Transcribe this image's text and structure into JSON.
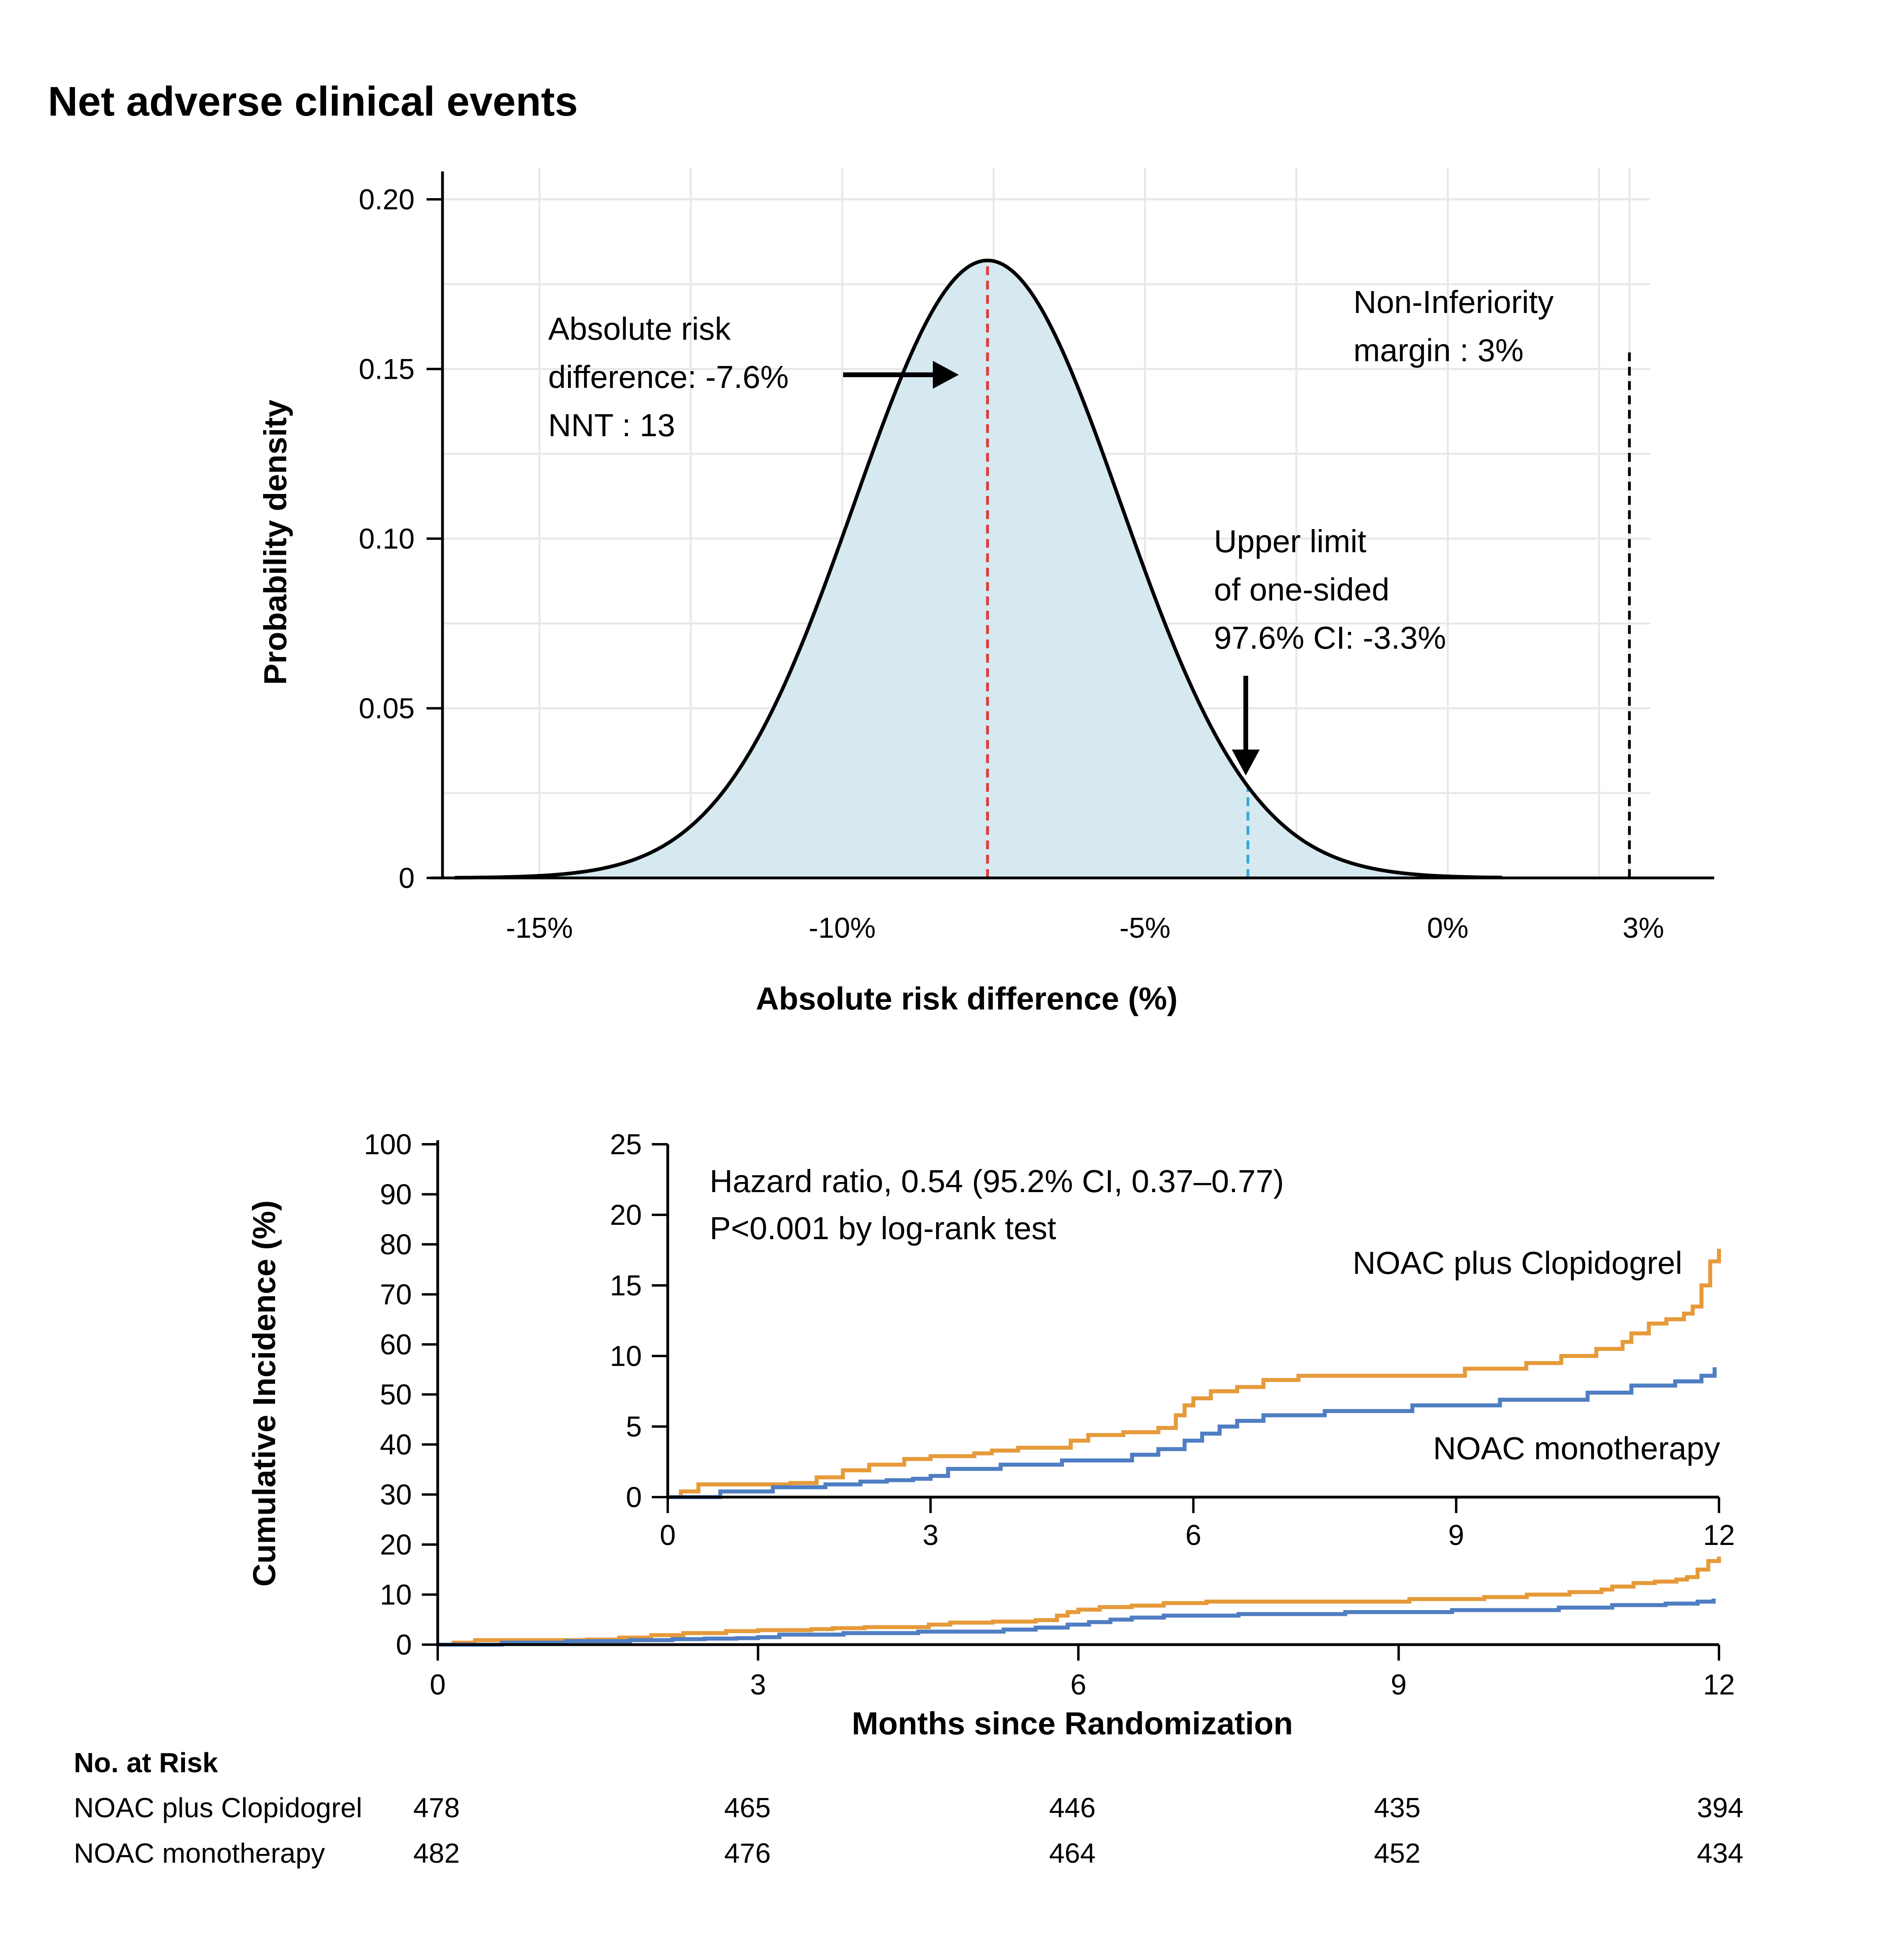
{
  "title": "Net adverse clinical events",
  "colors": {
    "clopidogrel": "#E69A3A",
    "monotherapy": "#4F7EC2",
    "density_fill": "#D6E8F0",
    "point_estimate": "#E03A3A",
    "upper_limit": "#35A8D8",
    "margin_line": "#000000"
  },
  "chart_data": [
    {
      "type": "area",
      "name": "density",
      "xlabel": "Absolute risk difference (%)",
      "ylabel": "Probability density",
      "xlim": [
        -16.6,
        4.4
      ],
      "ylim": [
        0,
        0.2
      ],
      "xticks": [
        {
          "value": -15,
          "label": "-15%"
        },
        {
          "value": -10,
          "label": "-10%"
        },
        {
          "value": -5,
          "label": "-5%"
        },
        {
          "value": 0,
          "label": "0%"
        },
        {
          "value": 3,
          "label": "3%"
        }
      ],
      "yticks": [
        {
          "value": 0,
          "label": "0"
        },
        {
          "value": 0.05,
          "label": "0.05"
        },
        {
          "value": 0.1,
          "label": "0.10"
        },
        {
          "value": 0.15,
          "label": "0.15"
        },
        {
          "value": 0.2,
          "label": "0.20"
        }
      ],
      "distribution": {
        "mean": -7.6,
        "sd": 2.2,
        "peak_density": 0.182,
        "x_range": [
          -16.4,
          0.9
        ]
      },
      "point_estimate": -7.6,
      "upper_limit": -3.3,
      "noninferiority_margin": 3,
      "annotations": {
        "estimate_line1": "Absolute risk",
        "estimate_line2": "difference: -7.6%",
        "estimate_line3": "NNT : 13",
        "margin_line1": "Non-Inferiority",
        "margin_line2": "margin : 3%",
        "upper_line1": "Upper limit",
        "upper_line2": "of one-sided",
        "upper_line3": "97.6% CI: -3.3%"
      }
    },
    {
      "type": "line",
      "name": "kaplan-meier-main",
      "xlabel": "Months since Randomization",
      "ylabel": "Cumulative Incidence (%)",
      "xlim": [
        0,
        12
      ],
      "ylim": [
        0,
        100
      ],
      "xticks": [
        0,
        3,
        6,
        9,
        12
      ],
      "yticks": [
        0,
        10,
        20,
        30,
        40,
        50,
        60,
        70,
        80,
        90,
        100
      ],
      "series": [
        {
          "name": "NOAC plus Clopidogrel",
          "x": [
            0,
            0.15,
            0.35,
            1.4,
            1.7,
            2.0,
            2.3,
            2.7,
            3.0,
            3.5,
            3.7,
            4.0,
            4.6,
            4.8,
            5.2,
            5.6,
            5.8,
            5.9,
            6.0,
            6.2,
            6.5,
            6.8,
            7.2,
            8.3,
            9.1,
            9.8,
            10.2,
            10.6,
            10.9,
            11.0,
            11.2,
            11.4,
            11.6,
            11.7,
            11.8,
            11.9,
            12.0
          ],
          "y": [
            0,
            0.4,
            0.9,
            1.0,
            1.4,
            1.9,
            2.3,
            2.7,
            2.9,
            3.1,
            3.3,
            3.5,
            4.0,
            4.4,
            4.6,
            4.9,
            5.8,
            6.5,
            7.0,
            7.5,
            7.8,
            8.3,
            8.6,
            8.6,
            9.1,
            9.5,
            10.0,
            10.5,
            11.0,
            11.6,
            12.3,
            12.6,
            13.0,
            13.5,
            15.0,
            16.7,
            17.6
          ]
        },
        {
          "name": "NOAC monotherapy",
          "x": [
            0,
            0.6,
            1.2,
            1.8,
            2.2,
            2.5,
            2.8,
            3.0,
            3.2,
            3.8,
            4.5,
            5.3,
            5.6,
            5.9,
            6.1,
            6.3,
            6.5,
            6.8,
            7.5,
            8.5,
            9.5,
            10.5,
            11.0,
            11.5,
            11.8,
            11.95
          ],
          "y": [
            0,
            0.4,
            0.7,
            0.9,
            1.1,
            1.2,
            1.3,
            1.5,
            2.0,
            2.3,
            2.6,
            3.0,
            3.4,
            4.0,
            4.5,
            5.0,
            5.4,
            5.8,
            6.1,
            6.5,
            6.9,
            7.4,
            7.9,
            8.2,
            8.6,
            9.2
          ]
        }
      ]
    },
    {
      "type": "line",
      "name": "kaplan-meier-inset",
      "xlim": [
        0,
        12
      ],
      "ylim": [
        0,
        25
      ],
      "xticks": [
        0,
        3,
        6,
        9,
        12
      ],
      "yticks": [
        0,
        5,
        10,
        15,
        20,
        25
      ],
      "annotations": {
        "hr_line1": "Hazard ratio, 0.54 (95.2% CI, 0.37–0.77)",
        "hr_line2": "P<0.001 by log-rank test",
        "label_clopidogrel": "NOAC plus Clopidogrel",
        "label_monotherapy": "NOAC monotherapy"
      }
    }
  ],
  "risk_table": {
    "heading": "No. at Risk",
    "rows": [
      {
        "label": "NOAC plus Clopidogrel",
        "values": [
          "478",
          "465",
          "446",
          "435",
          "394"
        ]
      },
      {
        "label": "NOAC monotherapy",
        "values": [
          "482",
          "476",
          "464",
          "452",
          "434"
        ]
      }
    ]
  }
}
